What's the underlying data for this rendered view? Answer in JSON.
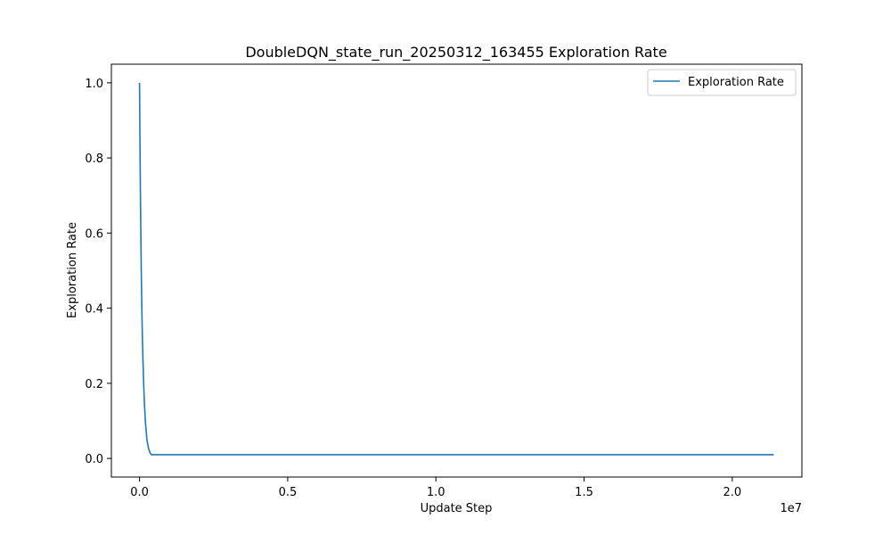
{
  "chart_data": {
    "type": "line",
    "title": "DoubleDQN_state_run_20250312_163455 Exploration Rate",
    "xlabel": "Update Step",
    "ylabel": "Exploration Rate",
    "x_offset_label": "1e7",
    "xlim": [
      -950000,
      22350000
    ],
    "ylim": [
      -0.0495,
      1.0495
    ],
    "x_ticks": [
      0,
      5000000,
      10000000,
      15000000,
      20000000
    ],
    "x_tick_labels": [
      "0.0",
      "0.5",
      "1.0",
      "1.5",
      "2.0"
    ],
    "y_ticks": [
      0.0,
      0.2,
      0.4,
      0.6,
      0.8,
      1.0
    ],
    "y_tick_labels": [
      "0.0",
      "0.2",
      "0.4",
      "0.6",
      "0.8",
      "1.0"
    ],
    "legend_position": "top-right",
    "grid": false,
    "series": [
      {
        "name": "Exploration Rate",
        "color": "#1f77b4",
        "x": [
          0,
          20000,
          40000,
          60000,
          80000,
          100000,
          130000,
          160000,
          200000,
          250000,
          300000,
          350000,
          400000,
          500000,
          1000000,
          5000000,
          10000000,
          15000000,
          20000000,
          21400000
        ],
        "y": [
          1.0,
          0.79,
          0.625,
          0.495,
          0.39,
          0.31,
          0.22,
          0.155,
          0.095,
          0.05,
          0.028,
          0.016,
          0.01,
          0.01,
          0.01,
          0.01,
          0.01,
          0.01,
          0.01,
          0.01
        ]
      }
    ]
  }
}
